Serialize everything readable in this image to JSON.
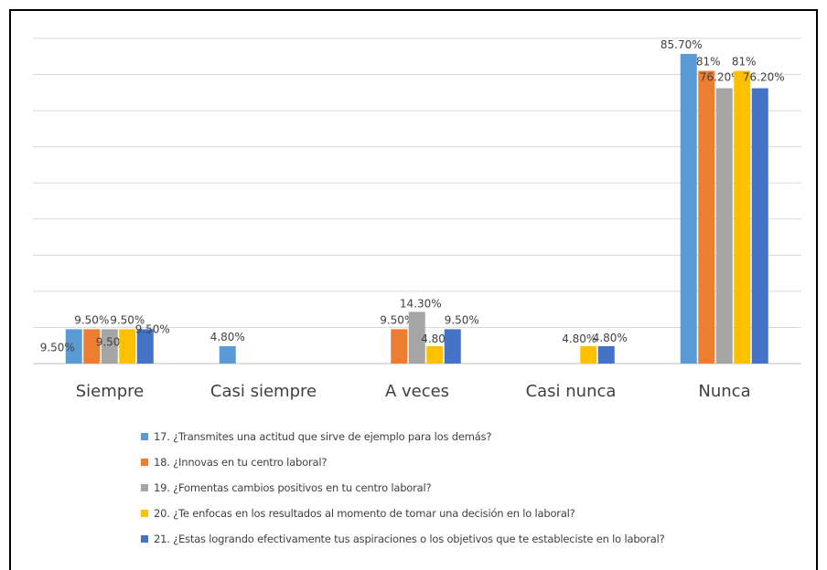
{
  "chart_data": {
    "type": "bar",
    "categories": [
      "Siempre",
      "Casi siempre",
      "A veces",
      "Casi nunca",
      "Nunca"
    ],
    "ylim": [
      0,
      90
    ],
    "grid": true,
    "legend_position": "bottom",
    "series": [
      {
        "name": "17. ¿Transmites una actitud que sirve de ejemplo para los demás?",
        "color": "#5B9BD5",
        "values": [
          9.5,
          4.8,
          null,
          null,
          85.7
        ],
        "labels": [
          "9.50%",
          "4.80%",
          "",
          "",
          "85.70%"
        ]
      },
      {
        "name": "18. ¿Innovas en tu centro laboral?",
        "color": "#ED7D31",
        "values": [
          9.5,
          null,
          9.5,
          null,
          81
        ],
        "labels": [
          "9.50%",
          "",
          "9.50%",
          "",
          "81%"
        ]
      },
      {
        "name": "19. ¿Fomentas cambios positivos en tu centro laboral?",
        "color": "#A5A5A5",
        "values": [
          9.5,
          null,
          14.3,
          null,
          76.2
        ],
        "labels": [
          "9.50%",
          "",
          "14.30%",
          "",
          "76.20%"
        ]
      },
      {
        "name": "20. ¿Te enfocas en los resultados al momento de tomar una decisión en lo laboral?",
        "color": "#FFC000",
        "values": [
          9.5,
          null,
          4.8,
          4.8,
          81
        ],
        "labels": [
          "9.50%",
          "",
          "4.80%",
          "4.80%",
          "81%"
        ]
      },
      {
        "name": "21. ¿Estas logrando efectivamente tus aspiraciones o los objetivos que te estableciste en lo laboral?",
        "color": "#4472C4",
        "values": [
          9.5,
          null,
          9.5,
          4.8,
          76.2
        ],
        "labels": [
          "9.50%",
          "",
          "9.50%",
          "4.80%",
          "76.20%"
        ]
      }
    ]
  }
}
